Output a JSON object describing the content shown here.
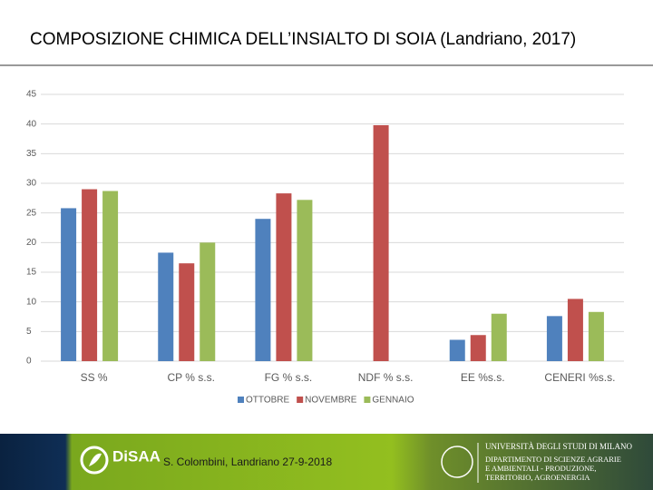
{
  "chart_data": {
    "type": "bar",
    "title": "COMPOSIZIONE CHIMICA DELL’INSIALTO DI SOIA (Landriano, 2017)",
    "categories": [
      "SS %",
      "CP % s.s.",
      "FG % s.s.",
      "NDF % s.s.",
      "EE %s.s.",
      "CENERI %s.s."
    ],
    "series": [
      {
        "name": "OTTOBRE",
        "color": "#4f81bd",
        "values": [
          25.8,
          18.3,
          24,
          null,
          3.6,
          7.6
        ]
      },
      {
        "name": "NOVEMBRE",
        "color": "#c0504d",
        "values": [
          29,
          16.5,
          28.3,
          39.8,
          4.4,
          10.5
        ]
      },
      {
        "name": "GENNAIO",
        "color": "#9bbb59",
        "values": [
          28.7,
          20,
          27.2,
          null,
          8,
          8.3
        ]
      }
    ],
    "ylim": [
      0,
      45
    ],
    "yticks": [
      0,
      5,
      10,
      15,
      20,
      25,
      30,
      35,
      40,
      45
    ],
    "grid": true,
    "legend": "bottom"
  },
  "footer": {
    "logo": "DiSAA",
    "caption": "S. Colombini, Landriano 27-9-2018",
    "university": "UNIVERSITÀ DEGLI STUDI DI MILANO",
    "department": [
      "DIPARTIMENTO DI SCIENZE AGRARIE",
      "E AMBIENTALI - PRODUZIONE,",
      "TERRITORIO, AGROENERGIA"
    ]
  }
}
